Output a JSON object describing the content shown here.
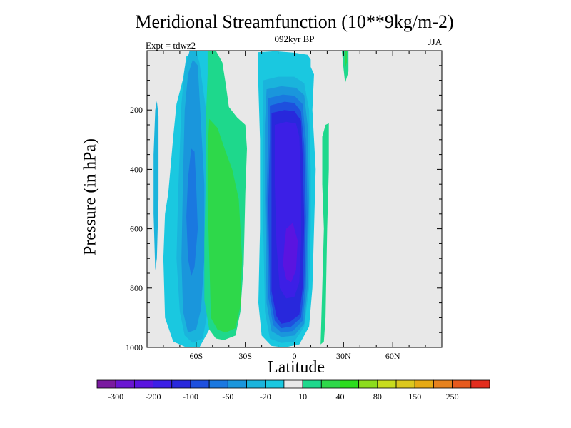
{
  "chart_data": {
    "type": "contour",
    "title": "Meridional Streamfunction (10**9kg/m-2)",
    "subtitle": "092kyr BP",
    "annotation_left": "Expt = tdwz2",
    "annotation_right": "JJA",
    "xlabel": "Latitude",
    "ylabel": "Pressure (in hPa)",
    "xlim": [
      -90,
      90
    ],
    "ylim": [
      1000,
      0
    ],
    "x_ticks": [
      {
        "value": -60,
        "label": "60S"
      },
      {
        "value": -30,
        "label": "30S"
      },
      {
        "value": 0,
        "label": "0"
      },
      {
        "value": 30,
        "label": "30N"
      },
      {
        "value": 60,
        "label": "60N"
      }
    ],
    "y_ticks": [
      {
        "value": 200,
        "label": "200"
      },
      {
        "value": 400,
        "label": "400"
      },
      {
        "value": 600,
        "label": "600"
      },
      {
        "value": 800,
        "label": "800"
      },
      {
        "value": 1000,
        "label": "1000"
      }
    ],
    "background_color": "#e8e8e8",
    "colorbar": {
      "levels": [
        -300,
        -250,
        -200,
        -150,
        -100,
        -80,
        -60,
        -40,
        -20,
        -10,
        10,
        20,
        40,
        60,
        80,
        100,
        150,
        200,
        250,
        300
      ],
      "colors": [
        "#7a1aa0",
        "#6a16d2",
        "#5a14e0",
        "#3c1fe6",
        "#2828dc",
        "#1e50de",
        "#1a78e0",
        "#1a96dc",
        "#1ab4dc",
        "#1ac8e0",
        "#e8e8e8",
        "#1ed88c",
        "#2ed84a",
        "#2cdc1e",
        "#8cdc1e",
        "#c8dc1e",
        "#dcc81e",
        "#e6aa14",
        "#e6821e",
        "#e65a1e",
        "#e22d1e"
      ],
      "labels": [
        {
          "after_level_index": 0,
          "text": "-300"
        },
        {
          "after_level_index": 2,
          "text": "-200"
        },
        {
          "after_level_index": 4,
          "text": "-100"
        },
        {
          "after_level_index": 6,
          "text": "-60"
        },
        {
          "after_level_index": 8,
          "text": "-20"
        },
        {
          "after_level_index": 10,
          "text": "10"
        },
        {
          "after_level_index": 12,
          "text": "40"
        },
        {
          "after_level_index": 14,
          "text": "80"
        },
        {
          "after_level_index": 16,
          "text": "150"
        },
        {
          "after_level_index": 18,
          "text": "250"
        }
      ]
    },
    "regions": [
      {
        "name": "tropical-ascending-cell",
        "level": -10,
        "color": "#1ac8e0",
        "points": [
          [
            -22,
            5
          ],
          [
            -12,
            2
          ],
          [
            0,
            7
          ],
          [
            8,
            14
          ],
          [
            10,
            30
          ],
          [
            10,
            55
          ],
          [
            12,
            80
          ],
          [
            11,
            200
          ],
          [
            13,
            400
          ],
          [
            12,
            600
          ],
          [
            11,
            800
          ],
          [
            9,
            930
          ],
          [
            3,
            990
          ],
          [
            -6,
            1000
          ],
          [
            -14,
            995
          ],
          [
            -20,
            960
          ],
          [
            -22,
            850
          ],
          [
            -21,
            600
          ],
          [
            -21,
            300
          ],
          [
            -22,
            120
          ]
        ]
      },
      {
        "name": "tropical-ascending-cell",
        "level": -20,
        "color": "#1ab4dc",
        "points": [
          [
            -19,
            100
          ],
          [
            -10,
            88
          ],
          [
            0,
            88
          ],
          [
            6,
            110
          ],
          [
            9,
            200
          ],
          [
            10,
            400
          ],
          [
            10,
            600
          ],
          [
            9,
            800
          ],
          [
            6,
            930
          ],
          [
            0,
            980
          ],
          [
            -8,
            985
          ],
          [
            -15,
            970
          ],
          [
            -18,
            880
          ],
          [
            -19,
            600
          ],
          [
            -19,
            300
          ]
        ]
      },
      {
        "name": "tropical-ascending-cell",
        "level": -40,
        "color": "#1a96dc",
        "points": [
          [
            -17,
            130
          ],
          [
            -8,
            120
          ],
          [
            1,
            125
          ],
          [
            6,
            150
          ],
          [
            8,
            250
          ],
          [
            9,
            500
          ],
          [
            8,
            800
          ],
          [
            6,
            920
          ],
          [
            0,
            960
          ],
          [
            -8,
            965
          ],
          [
            -14,
            945
          ],
          [
            -17,
            850
          ],
          [
            -18,
            500
          ],
          [
            -18,
            250
          ]
        ]
      },
      {
        "name": "tropical-ascending-cell",
        "level": -60,
        "color": "#1a78e0",
        "points": [
          [
            -16,
            160
          ],
          [
            -7,
            148
          ],
          [
            0,
            152
          ],
          [
            5,
            180
          ],
          [
            7,
            300
          ],
          [
            8,
            550
          ],
          [
            7,
            800
          ],
          [
            5,
            910
          ],
          [
            -1,
            945
          ],
          [
            -8,
            950
          ],
          [
            -13,
            925
          ],
          [
            -16,
            830
          ],
          [
            -17,
            500
          ],
          [
            -16,
            280
          ]
        ]
      },
      {
        "name": "tropical-ascending-cell",
        "level": -80,
        "color": "#1e50de",
        "points": [
          [
            -15,
            185
          ],
          [
            -6,
            172
          ],
          [
            0,
            176
          ],
          [
            4,
            205
          ],
          [
            6,
            320
          ],
          [
            7,
            560
          ],
          [
            6,
            800
          ],
          [
            4,
            900
          ],
          [
            -2,
            930
          ],
          [
            -8,
            935
          ],
          [
            -12,
            910
          ],
          [
            -15,
            820
          ],
          [
            -16,
            520
          ],
          [
            -15,
            300
          ]
        ]
      },
      {
        "name": "tropical-ascending-cell",
        "level": -100,
        "color": "#2828dc",
        "points": [
          [
            -14,
            210
          ],
          [
            -6,
            200
          ],
          [
            0,
            204
          ],
          [
            4,
            235
          ],
          [
            5,
            350
          ],
          [
            6,
            580
          ],
          [
            5,
            800
          ],
          [
            3,
            890
          ],
          [
            -3,
            915
          ],
          [
            -8,
            920
          ],
          [
            -11,
            895
          ],
          [
            -14,
            810
          ],
          [
            -14,
            520
          ],
          [
            -14,
            320
          ]
        ]
      },
      {
        "name": "tropical-ascending-cell",
        "level": -150,
        "color": "#3c1fe6",
        "points": [
          [
            -12,
            250
          ],
          [
            -5,
            240
          ],
          [
            1,
            246
          ],
          [
            3,
            290
          ],
          [
            4,
            450
          ],
          [
            4,
            650
          ],
          [
            3,
            780
          ],
          [
            0,
            830
          ],
          [
            -5,
            835
          ],
          [
            -9,
            800
          ],
          [
            -11,
            650
          ],
          [
            -12,
            450
          ],
          [
            -12,
            320
          ]
        ]
      },
      {
        "name": "tropical-ascending-cell",
        "level": -200,
        "color": "#5a14e0",
        "points": [
          [
            -5,
            600
          ],
          [
            -1,
            580
          ],
          [
            2,
            640
          ],
          [
            1,
            740
          ],
          [
            -2,
            780
          ],
          [
            -5,
            770
          ],
          [
            -7,
            720
          ],
          [
            -6,
            650
          ]
        ]
      },
      {
        "name": "southern-descending-cell",
        "level": -10,
        "color": "#1ac8e0",
        "points": [
          [
            -74,
            290
          ],
          [
            -72,
            180
          ],
          [
            -68,
            95
          ],
          [
            -66,
            20
          ],
          [
            -60,
            0
          ],
          [
            -52,
            0
          ],
          [
            -50,
            80
          ],
          [
            -49,
            180
          ],
          [
            -46,
            600
          ],
          [
            -48,
            800
          ],
          [
            -52,
            940
          ],
          [
            -58,
            1000
          ],
          [
            -66,
            1000
          ],
          [
            -74,
            980
          ],
          [
            -79,
            900
          ],
          [
            -80,
            700
          ],
          [
            -79,
            550
          ],
          [
            -77,
            480
          ]
        ]
      },
      {
        "name": "southern-descending-cell",
        "level": -20,
        "color": "#1ab4dc",
        "points": [
          [
            -69,
            180
          ],
          [
            -67,
            60
          ],
          [
            -64,
            0
          ],
          [
            -60,
            0
          ],
          [
            -58,
            40
          ],
          [
            -54,
            200
          ],
          [
            -52,
            400
          ],
          [
            -51,
            650
          ],
          [
            -52,
            850
          ],
          [
            -56,
            970
          ],
          [
            -62,
            985
          ],
          [
            -67,
            960
          ],
          [
            -70,
            880
          ],
          [
            -72,
            700
          ],
          [
            -71,
            480
          ]
        ]
      },
      {
        "name": "southern-descending-cell",
        "level": -40,
        "color": "#1a96dc",
        "points": [
          [
            -67,
            200
          ],
          [
            -65,
            80
          ],
          [
            -62,
            30
          ],
          [
            -59,
            50
          ],
          [
            -57,
            250
          ],
          [
            -55,
            450
          ],
          [
            -55,
            700
          ],
          [
            -57,
            870
          ],
          [
            -60,
            940
          ],
          [
            -65,
            950
          ],
          [
            -68,
            880
          ],
          [
            -69,
            700
          ],
          [
            -68,
            420
          ]
        ]
      },
      {
        "name": "southern-descending-cell",
        "level": -60,
        "color": "#1a78e0",
        "points": [
          [
            -65,
            430
          ],
          [
            -63,
            330
          ],
          [
            -61,
            340
          ],
          [
            -60,
            450
          ],
          [
            -59,
            600
          ],
          [
            -61,
            730
          ],
          [
            -63,
            760
          ],
          [
            -65,
            700
          ],
          [
            -66,
            560
          ]
        ]
      },
      {
        "name": "polar-west-sliver",
        "level": -20,
        "color": "#1ab4dc",
        "points": [
          [
            -85,
            200
          ],
          [
            -84,
            170
          ],
          [
            -83,
            220
          ],
          [
            -83,
            500
          ],
          [
            -84,
            700
          ],
          [
            -85,
            740
          ],
          [
            -86,
            550
          ],
          [
            -86,
            350
          ]
        ]
      },
      {
        "name": "southern-ferrel-cell",
        "level": 10,
        "color": "#1ed88c",
        "points": [
          [
            -53,
            0
          ],
          [
            -48,
            0
          ],
          [
            -44,
            40
          ],
          [
            -42,
            110
          ],
          [
            -40,
            190
          ],
          [
            -35,
            225
          ],
          [
            -30,
            250
          ],
          [
            -29,
            330
          ],
          [
            -30,
            480
          ],
          [
            -31,
            720
          ],
          [
            -33,
            880
          ],
          [
            -36,
            960
          ],
          [
            -43,
            975
          ],
          [
            -48,
            970
          ],
          [
            -52,
            940
          ],
          [
            -55,
            840
          ],
          [
            -55,
            640
          ],
          [
            -54,
            420
          ],
          [
            -54,
            220
          ],
          [
            -53,
            80
          ]
        ]
      },
      {
        "name": "southern-ferrel-cell",
        "level": 20,
        "color": "#2ed84a",
        "points": [
          [
            -52,
            230
          ],
          [
            -47,
            260
          ],
          [
            -42,
            340
          ],
          [
            -38,
            400
          ],
          [
            -34,
            500
          ],
          [
            -32,
            700
          ],
          [
            -33,
            860
          ],
          [
            -36,
            935
          ],
          [
            -42,
            950
          ],
          [
            -47,
            940
          ],
          [
            -51,
            900
          ],
          [
            -52,
            700
          ],
          [
            -53,
            500
          ],
          [
            -53,
            330
          ]
        ]
      },
      {
        "name": "northern-upper-lobe",
        "level": 10,
        "color": "#1ed88c",
        "points": [
          [
            29,
            0
          ],
          [
            33,
            0
          ],
          [
            33,
            70
          ],
          [
            31,
            110
          ],
          [
            30,
            60
          ]
        ]
      },
      {
        "name": "northern-upper-lobe",
        "level": 20,
        "color": "#2ed84a",
        "points": [
          [
            31,
            0
          ],
          [
            32,
            0
          ],
          [
            32,
            40
          ],
          [
            31,
            60
          ]
        ]
      },
      {
        "name": "northern-subtropical-band",
        "level": 10,
        "color": "#1ed88c",
        "points": [
          [
            17,
            290
          ],
          [
            19,
            250
          ],
          [
            21,
            245
          ],
          [
            21,
            400
          ],
          [
            20,
            600
          ],
          [
            19,
            900
          ],
          [
            18,
            980
          ],
          [
            16,
            990
          ],
          [
            17,
            800
          ],
          [
            18,
            600
          ],
          [
            17,
            450
          ]
        ]
      }
    ]
  }
}
